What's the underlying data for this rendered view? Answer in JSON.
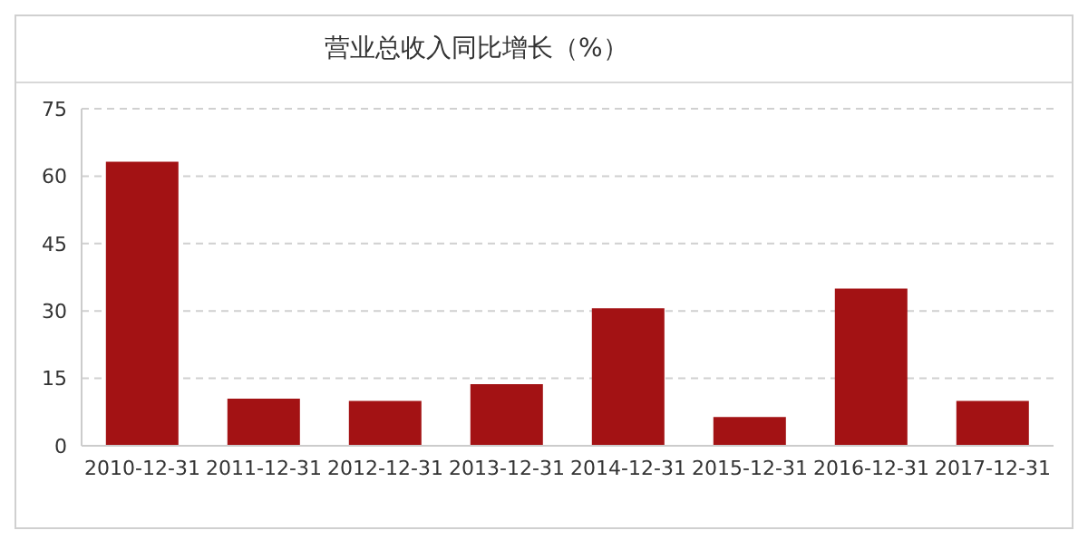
{
  "chart_data": {
    "type": "bar",
    "title": "营业总收入同比增长（%）",
    "categories": [
      "2010-12-31",
      "2011-12-31",
      "2012-12-31",
      "2013-12-31",
      "2014-12-31",
      "2015-12-31",
      "2016-12-31",
      "2017-12-31"
    ],
    "values": [
      63.2,
      10.5,
      10,
      13.7,
      30.6,
      6.4,
      35,
      10
    ],
    "color": "#a31214",
    "ylim": [
      0,
      75
    ],
    "yticks": [
      0,
      15,
      30,
      45,
      60,
      75
    ],
    "grid": "y"
  }
}
